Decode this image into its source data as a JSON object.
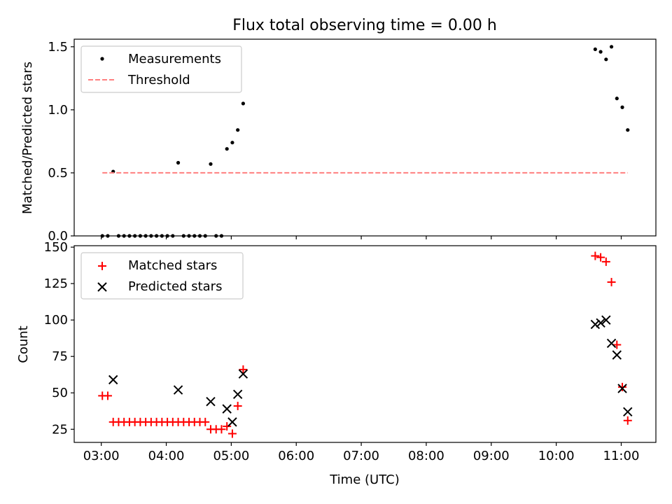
{
  "title": "Flux total observing time = 0.00 h",
  "xlabel": "Time (UTC)",
  "x_tick_labels": [
    "03:00",
    "04:00",
    "05:00",
    "06:00",
    "07:00",
    "08:00",
    "09:00",
    "10:00",
    "11:00"
  ],
  "chart_data": [
    {
      "type": "scatter",
      "panel": "top",
      "ylabel": "Matched/Predicted stars",
      "ylim": [
        0,
        1.56
      ],
      "y_ticks": [
        "0.0",
        "0.5",
        "1.0",
        "1.5"
      ],
      "xlim": [
        "02:35",
        "11:32"
      ],
      "legend_position": "upper-left",
      "series": [
        {
          "name": "Measurements",
          "marker": "dot",
          "color": "#000000",
          "points": [
            [
              "03:01",
              0.0
            ],
            [
              "03:06",
              0.0
            ],
            [
              "03:11",
              0.51
            ],
            [
              "03:16",
              0.0
            ],
            [
              "03:21",
              0.0
            ],
            [
              "03:26",
              0.0
            ],
            [
              "03:31",
              0.0
            ],
            [
              "03:36",
              0.0
            ],
            [
              "03:41",
              0.0
            ],
            [
              "03:46",
              0.0
            ],
            [
              "03:51",
              0.0
            ],
            [
              "03:56",
              0.0
            ],
            [
              "04:01",
              0.0
            ],
            [
              "04:06",
              0.0
            ],
            [
              "04:11",
              0.58
            ],
            [
              "04:16",
              0.0
            ],
            [
              "04:21",
              0.0
            ],
            [
              "04:26",
              0.0
            ],
            [
              "04:31",
              0.0
            ],
            [
              "04:36",
              0.0
            ],
            [
              "04:41",
              0.57
            ],
            [
              "04:46",
              0.0
            ],
            [
              "04:51",
              0.0
            ],
            [
              "04:56",
              0.69
            ],
            [
              "05:01",
              0.74
            ],
            [
              "05:06",
              0.84
            ],
            [
              "05:11",
              1.05
            ],
            [
              "10:36",
              1.48
            ],
            [
              "10:41",
              1.46
            ],
            [
              "10:46",
              1.4
            ],
            [
              "10:51",
              1.5
            ],
            [
              "10:56",
              1.09
            ],
            [
              "11:01",
              1.02
            ],
            [
              "11:06",
              0.84
            ]
          ]
        },
        {
          "name": "Threshold",
          "marker": "dashed-line",
          "color": "#ff7f7f",
          "points": [
            [
              "03:01",
              0.5
            ],
            [
              "11:06",
              0.5
            ]
          ]
        }
      ]
    },
    {
      "type": "scatter",
      "panel": "bottom",
      "ylabel": "Count",
      "ylim": [
        16,
        151
      ],
      "y_ticks": [
        "25",
        "50",
        "75",
        "100",
        "125",
        "150"
      ],
      "xlim": [
        "02:35",
        "11:32"
      ],
      "legend_position": "upper-left",
      "series": [
        {
          "name": "Matched stars",
          "marker": "plus",
          "color": "#ff0000",
          "points": [
            [
              "03:01",
              48
            ],
            [
              "03:06",
              48
            ],
            [
              "03:11",
              30
            ],
            [
              "03:16",
              30
            ],
            [
              "03:21",
              30
            ],
            [
              "03:26",
              30
            ],
            [
              "03:31",
              30
            ],
            [
              "03:36",
              30
            ],
            [
              "03:41",
              30
            ],
            [
              "03:46",
              30
            ],
            [
              "03:51",
              30
            ],
            [
              "03:56",
              30
            ],
            [
              "04:01",
              30
            ],
            [
              "04:06",
              30
            ],
            [
              "04:11",
              30
            ],
            [
              "04:16",
              30
            ],
            [
              "04:21",
              30
            ],
            [
              "04:26",
              30
            ],
            [
              "04:31",
              30
            ],
            [
              "04:36",
              30
            ],
            [
              "04:41",
              25
            ],
            [
              "04:46",
              25
            ],
            [
              "04:51",
              25
            ],
            [
              "04:56",
              27
            ],
            [
              "05:01",
              22
            ],
            [
              "05:06",
              41
            ],
            [
              "05:11",
              66
            ],
            [
              "10:36",
              144
            ],
            [
              "10:41",
              143
            ],
            [
              "10:46",
              140
            ],
            [
              "10:51",
              126
            ],
            [
              "10:56",
              83
            ],
            [
              "11:01",
              54
            ],
            [
              "11:06",
              31
            ]
          ]
        },
        {
          "name": "Predicted stars",
          "marker": "x",
          "color": "#000000",
          "points": [
            [
              "03:11",
              59
            ],
            [
              "04:11",
              52
            ],
            [
              "04:41",
              44
            ],
            [
              "04:56",
              39
            ],
            [
              "05:01",
              30
            ],
            [
              "05:06",
              49
            ],
            [
              "05:11",
              63
            ],
            [
              "10:36",
              97
            ],
            [
              "10:41",
              98
            ],
            [
              "10:46",
              100
            ],
            [
              "10:51",
              84
            ],
            [
              "10:56",
              76
            ],
            [
              "11:01",
              53
            ],
            [
              "11:06",
              37
            ]
          ]
        }
      ]
    }
  ]
}
